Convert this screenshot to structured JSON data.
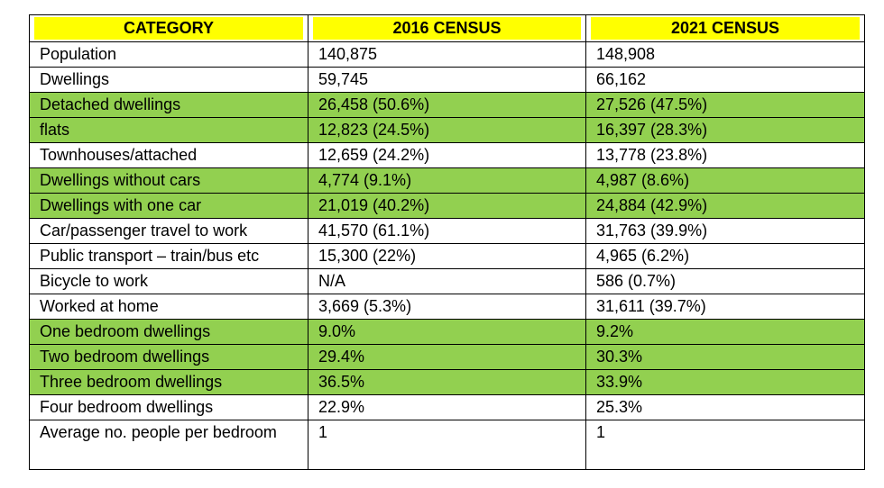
{
  "table": {
    "headers": [
      "CATEGORY",
      "2016 CENSUS",
      "2021 CENSUS"
    ],
    "highlight_color": "#ffff00",
    "row_highlight_color": "#92d050",
    "rows": [
      {
        "category": "Population",
        "census_2016": "140,875",
        "census_2021": "148,908",
        "highlighted": false
      },
      {
        "category": "Dwellings",
        "census_2016": "59,745",
        "census_2021": "66,162",
        "highlighted": false
      },
      {
        "category": "Detached dwellings",
        "census_2016": "26,458 (50.6%)",
        "census_2021": "27,526 (47.5%)",
        "highlighted": true
      },
      {
        "category": "flats",
        "census_2016": "12,823 (24.5%)",
        "census_2021": "16,397 (28.3%)",
        "highlighted": true
      },
      {
        "category": "Townhouses/attached",
        "census_2016": "12,659 (24.2%)",
        "census_2021": "13,778 (23.8%)",
        "highlighted": false
      },
      {
        "category": "Dwellings without cars",
        "census_2016": "4,774 (9.1%)",
        "census_2021": "4,987 (8.6%)",
        "highlighted": true
      },
      {
        "category": "Dwellings with one car",
        "census_2016": "21,019 (40.2%)",
        "census_2021": "24,884 (42.9%)",
        "highlighted": true
      },
      {
        "category": "Car/passenger travel to work",
        "census_2016": "41,570 (61.1%)",
        "census_2021": "31,763 (39.9%)",
        "highlighted": false
      },
      {
        "category": "Public transport – train/bus etc",
        "census_2016": "15,300 (22%)",
        "census_2021": "4,965 (6.2%)",
        "highlighted": false
      },
      {
        "category": "Bicycle to work",
        "census_2016": "N/A",
        "census_2021": "586 (0.7%)",
        "highlighted": false
      },
      {
        "category": "Worked at home",
        "census_2016": "3,669 (5.3%)",
        "census_2021": "31,611 (39.7%)",
        "highlighted": false
      },
      {
        "category": "One bedroom dwellings",
        "census_2016": "9.0%",
        "census_2021": "9.2%",
        "highlighted": true
      },
      {
        "category": "Two bedroom dwellings",
        "census_2016": "29.4%",
        "census_2021": "30.3%",
        "highlighted": true
      },
      {
        "category": "Three bedroom dwellings",
        "census_2016": "36.5%",
        "census_2021": "33.9%",
        "highlighted": true
      },
      {
        "category": "Four bedroom dwellings",
        "census_2016": "22.9%",
        "census_2021": "25.3%",
        "highlighted": false
      },
      {
        "category": "Average no. people per bedroom",
        "census_2016": "1",
        "census_2021": "1",
        "highlighted": false
      }
    ]
  }
}
